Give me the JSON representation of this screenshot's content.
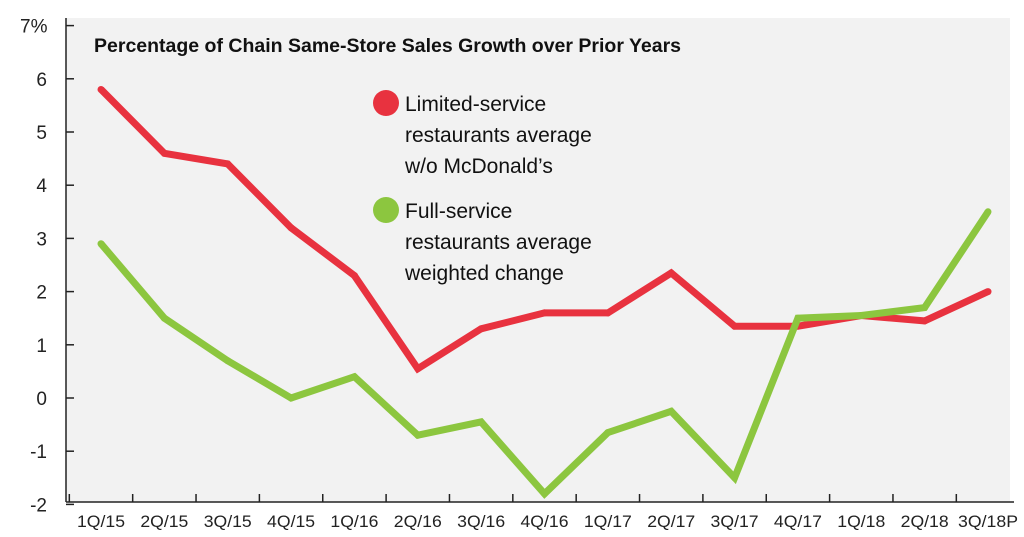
{
  "chart_data": {
    "type": "line",
    "title": "Percentage of Chain Same-Store Sales Growth over Prior Years",
    "xlabel": "",
    "ylabel": "",
    "categories": [
      "1Q/15",
      "2Q/15",
      "3Q/15",
      "4Q/15",
      "1Q/16",
      "2Q/16",
      "3Q/16",
      "4Q/16",
      "1Q/17",
      "2Q/17",
      "3Q/17",
      "4Q/17",
      "1Q/18",
      "2Q/18",
      "3Q/18P"
    ],
    "y_ticks": [
      "7%",
      "6",
      "5",
      "4",
      "3",
      "2",
      "1",
      "0",
      "-1",
      "-2"
    ],
    "ylim": [
      -2,
      7
    ],
    "grid": false,
    "legend_placement": "top-center",
    "series": [
      {
        "name": "Limited-service restaurants average w/o McDonald's",
        "legend_lines": [
          "Limited-service",
          "restaurants average",
          "w/o McDonald’s"
        ],
        "color": "#e8323f",
        "values": [
          5.8,
          4.6,
          4.4,
          3.2,
          2.3,
          0.55,
          1.3,
          1.6,
          1.6,
          2.35,
          1.35,
          1.35,
          1.55,
          1.45,
          2.0
        ]
      },
      {
        "name": "Full-service restaurants average weighted change",
        "legend_lines": [
          "Full-service",
          "restaurants average",
          "weighted change"
        ],
        "color": "#8cc63f",
        "values": [
          2.9,
          1.5,
          0.7,
          0.0,
          0.4,
          -0.7,
          -0.45,
          -1.8,
          -0.65,
          -0.25,
          -1.5,
          1.5,
          1.55,
          1.7,
          3.5
        ]
      }
    ],
    "plot_background": "#f2f2f2",
    "page_background": "#ffffff"
  }
}
